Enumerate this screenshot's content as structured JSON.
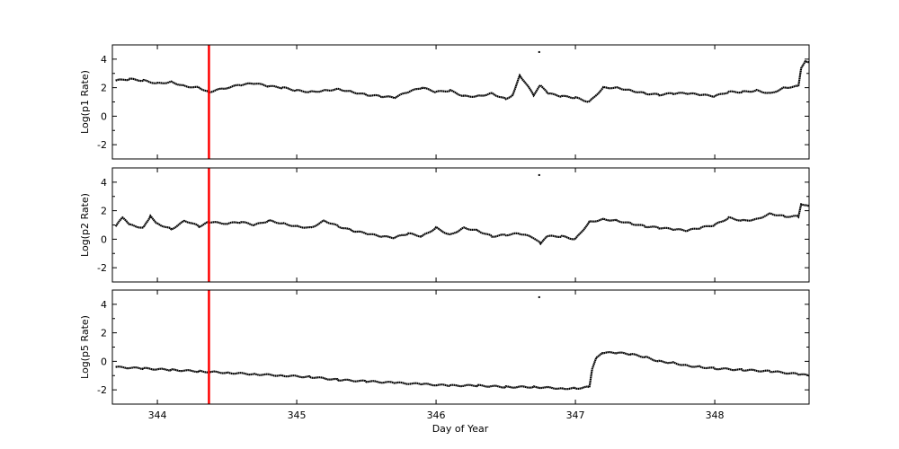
{
  "chart_data": {
    "type": "scatter",
    "title": "",
    "xlabel": "Day of Year",
    "xlim": [
      343.677,
      348.677
    ],
    "xticks": [
      344,
      345,
      346,
      347,
      348
    ],
    "xtick_labels": [
      "344",
      "345",
      "346",
      "347",
      "348"
    ],
    "event_marker": {
      "x": 344.37,
      "color": "#ff0000",
      "label": ""
    },
    "grid": false,
    "legend": null,
    "panels": [
      {
        "ylabel": "Log(p1 Rate)",
        "ylim": [
          -3,
          5
        ],
        "yticks": [
          -2,
          0,
          2,
          4
        ],
        "ytick_labels": [
          "-2",
          "0",
          "2",
          "4"
        ],
        "x": [
          343.7,
          343.8,
          343.9,
          344.0,
          344.1,
          344.2,
          344.3,
          344.37,
          344.5,
          344.6,
          344.7,
          344.8,
          344.9,
          345.0,
          345.1,
          345.2,
          345.3,
          345.4,
          345.5,
          345.6,
          345.7,
          345.8,
          345.9,
          346.0,
          346.1,
          346.2,
          346.3,
          346.4,
          346.5,
          346.55,
          346.6,
          346.7,
          346.75,
          346.8,
          346.9,
          347.0,
          347.1,
          347.2,
          347.3,
          347.4,
          347.5,
          347.6,
          347.7,
          347.8,
          347.9,
          348.0,
          348.1,
          348.2,
          348.3,
          348.4,
          348.5,
          348.6,
          348.62,
          348.65,
          348.677
        ],
        "y": [
          2.5,
          2.6,
          2.5,
          2.3,
          2.4,
          2.1,
          2.0,
          1.7,
          2.0,
          2.2,
          2.3,
          2.1,
          2.0,
          1.8,
          1.7,
          1.8,
          1.9,
          1.7,
          1.5,
          1.4,
          1.3,
          1.7,
          2.0,
          1.7,
          1.8,
          1.4,
          1.4,
          1.6,
          1.2,
          1.5,
          2.9,
          1.5,
          2.2,
          1.6,
          1.4,
          1.3,
          1.0,
          2.0,
          2.0,
          1.8,
          1.6,
          1.5,
          1.6,
          1.6,
          1.5,
          1.4,
          1.7,
          1.7,
          1.8,
          1.6,
          2.0,
          2.1,
          3.4,
          3.9,
          3.8
        ],
        "outliers": [
          {
            "x": 346.74,
            "y": 4.5
          }
        ]
      },
      {
        "ylabel": "Log(p2 Rate)",
        "ylim": [
          -3,
          5
        ],
        "yticks": [
          -2,
          0,
          2,
          4
        ],
        "ytick_labels": [
          "-2",
          "0",
          "2",
          "4"
        ],
        "x": [
          343.7,
          343.75,
          343.8,
          343.9,
          343.95,
          344.0,
          344.1,
          344.2,
          344.3,
          344.37,
          344.5,
          344.6,
          344.7,
          344.8,
          344.9,
          345.0,
          345.1,
          345.2,
          345.3,
          345.4,
          345.5,
          345.6,
          345.7,
          345.8,
          345.9,
          346.0,
          346.1,
          346.2,
          346.3,
          346.4,
          346.5,
          346.6,
          346.7,
          346.75,
          346.8,
          346.9,
          347.0,
          347.1,
          347.2,
          347.3,
          347.4,
          347.5,
          347.6,
          347.7,
          347.8,
          347.9,
          348.0,
          348.1,
          348.2,
          348.3,
          348.4,
          348.5,
          348.6,
          348.62,
          348.677
        ],
        "y": [
          0.9,
          1.5,
          1.0,
          0.8,
          1.6,
          1.1,
          0.7,
          1.3,
          0.9,
          1.2,
          1.1,
          1.2,
          1.0,
          1.3,
          1.1,
          0.9,
          0.8,
          1.3,
          0.9,
          0.6,
          0.4,
          0.2,
          0.1,
          0.4,
          0.2,
          0.8,
          0.3,
          0.8,
          0.6,
          0.2,
          0.3,
          0.4,
          0.1,
          -0.3,
          0.2,
          0.2,
          0.0,
          1.2,
          1.4,
          1.3,
          1.1,
          0.9,
          0.8,
          0.7,
          0.6,
          0.8,
          1.0,
          1.5,
          1.3,
          1.4,
          1.8,
          1.6,
          1.6,
          2.5,
          2.3
        ],
        "outliers": [
          {
            "x": 346.74,
            "y": 4.5
          }
        ]
      },
      {
        "ylabel": "Log(p5 Rate)",
        "ylim": [
          -3,
          5
        ],
        "yticks": [
          -2,
          0,
          2,
          4
        ],
        "ytick_labels": [
          "-2",
          "0",
          "2",
          "4"
        ],
        "x": [
          343.7,
          343.9,
          344.1,
          344.3,
          344.5,
          344.7,
          344.9,
          345.1,
          345.3,
          345.5,
          345.7,
          345.9,
          346.1,
          346.3,
          346.5,
          346.7,
          346.9,
          347.0,
          347.1,
          347.12,
          347.15,
          347.2,
          347.3,
          347.4,
          347.5,
          347.6,
          347.7,
          347.8,
          347.9,
          348.0,
          348.2,
          348.4,
          348.6,
          348.677
        ],
        "y": [
          -0.4,
          -0.5,
          -0.6,
          -0.7,
          -0.8,
          -0.9,
          -1.0,
          -1.1,
          -1.3,
          -1.4,
          -1.5,
          -1.6,
          -1.7,
          -1.7,
          -1.8,
          -1.8,
          -1.9,
          -1.9,
          -1.8,
          -0.5,
          0.3,
          0.6,
          0.6,
          0.5,
          0.3,
          0.0,
          -0.1,
          -0.3,
          -0.4,
          -0.5,
          -0.6,
          -0.7,
          -0.9,
          -1.0
        ],
        "outliers": [
          {
            "x": 346.74,
            "y": 4.5
          }
        ]
      }
    ]
  }
}
